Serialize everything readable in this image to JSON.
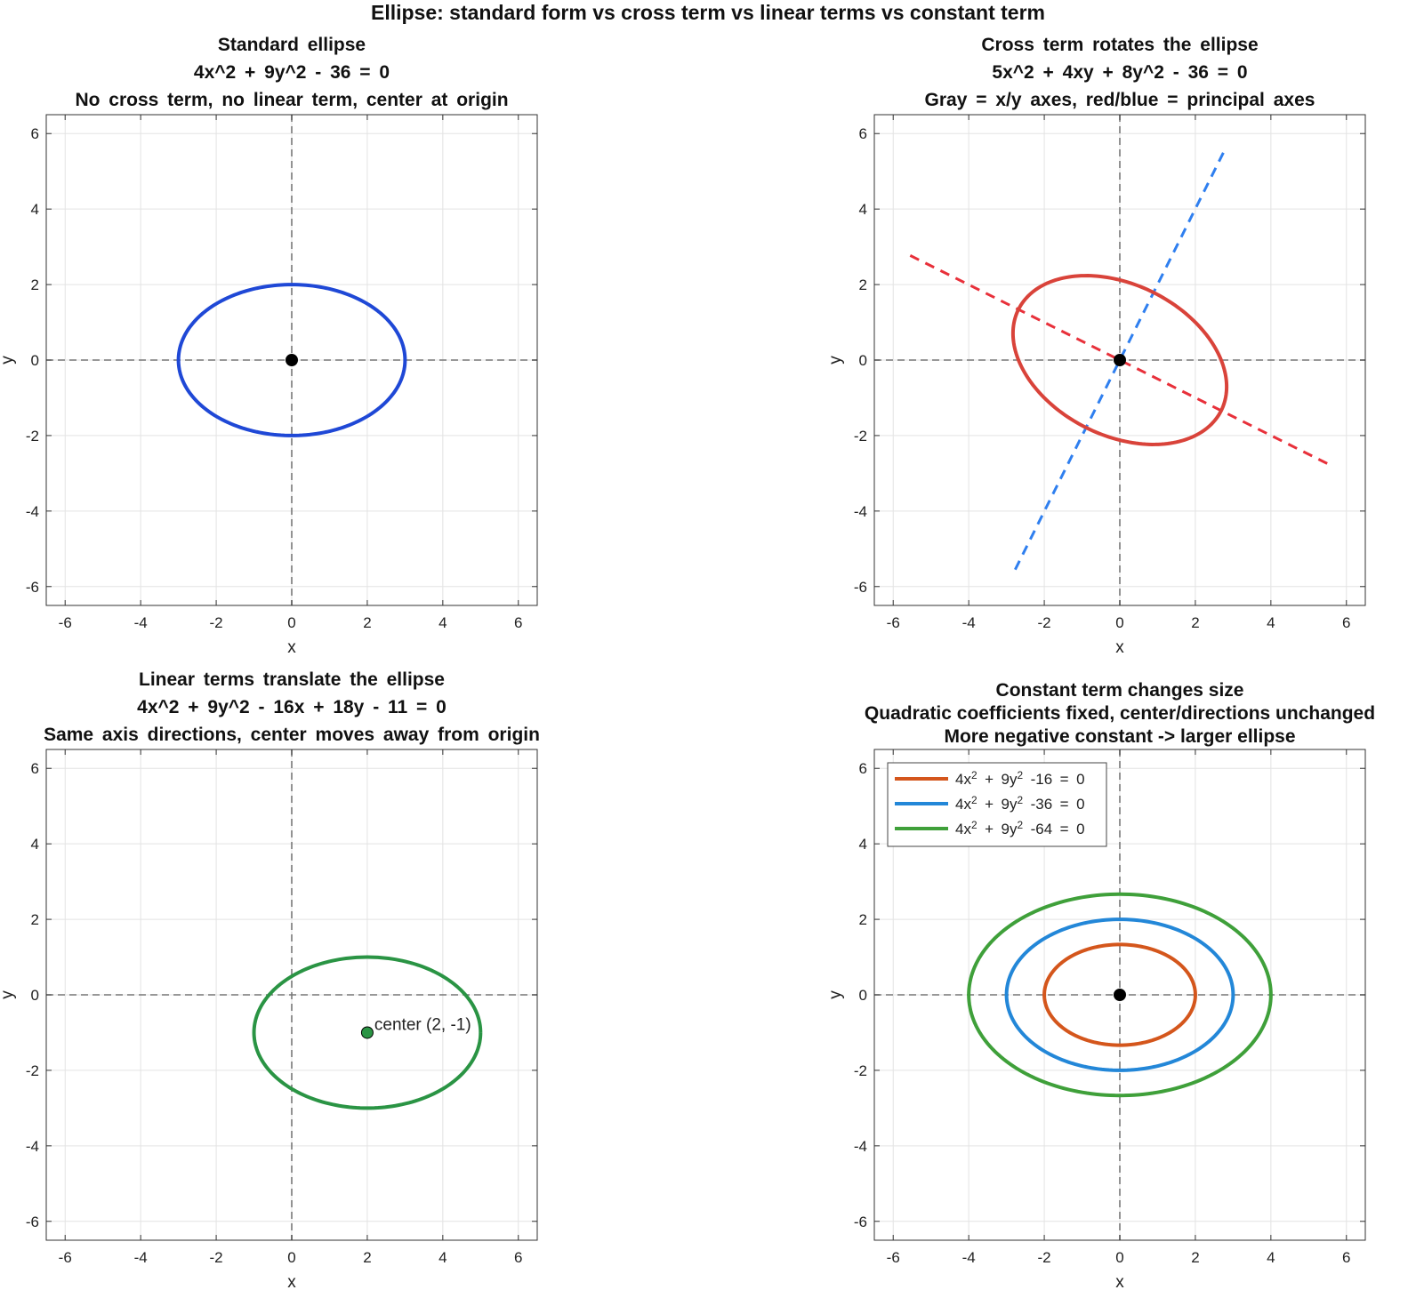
{
  "figure_title": "Ellipse: standard form vs cross term vs linear terms vs constant term",
  "chart_data": [
    {
      "type": "line",
      "title": [
        "Standard ellipse",
        "4x^2 + 9y^2 - 36 = 0",
        "No cross term, no linear term, center at origin"
      ],
      "xlabel": "x",
      "ylabel": "y",
      "xlim": [
        -6.5,
        6.5
      ],
      "ylim": [
        -6.5,
        6.5
      ],
      "xticks": [
        -6,
        -4,
        -2,
        0,
        2,
        4,
        6
      ],
      "yticks": [
        -6,
        -4,
        -2,
        0,
        2,
        4,
        6
      ],
      "grid": true,
      "ellipses": [
        {
          "A": 4,
          "B": 0,
          "C": 9,
          "D": 0,
          "E": 0,
          "F": -36,
          "center": [
            0,
            0
          ],
          "a": 3,
          "b": 2,
          "angle_deg": 0,
          "color": "#1f48d6"
        }
      ],
      "points": [
        {
          "x": 0,
          "y": 0,
          "color": "#000000"
        }
      ],
      "lines": []
    },
    {
      "type": "line",
      "title": [
        "Cross term rotates the ellipse",
        "5x^2 + 4xy + 8y^2 - 36 = 0",
        "Gray = x/y axes, red/blue = principal axes"
      ],
      "xlabel": "x",
      "ylabel": "y",
      "xlim": [
        -6.5,
        6.5
      ],
      "ylim": [
        -6.5,
        6.5
      ],
      "xticks": [
        -6,
        -4,
        -2,
        0,
        2,
        4,
        6
      ],
      "yticks": [
        -6,
        -4,
        -2,
        0,
        2,
        4,
        6
      ],
      "grid": true,
      "ellipses": [
        {
          "A": 5,
          "B": 4,
          "C": 8,
          "D": 0,
          "E": 0,
          "F": -36,
          "center": [
            0,
            0
          ],
          "a": 3,
          "b": 2,
          "angle_deg": -26.565,
          "color": "#d9433a"
        }
      ],
      "points": [
        {
          "x": 0,
          "y": 0,
          "color": "#000000"
        }
      ],
      "lines": [
        {
          "x": [
            -5.55,
            5.55
          ],
          "y": [
            2.77,
            -2.77
          ],
          "color": "#e8303a",
          "style": "dashed"
        },
        {
          "x": [
            -2.77,
            2.77
          ],
          "y": [
            -5.55,
            5.55
          ],
          "color": "#2f7fef",
          "style": "dashed"
        }
      ]
    },
    {
      "type": "line",
      "title": [
        "Linear terms translate the ellipse",
        "4x^2 + 9y^2 - 16x + 18y - 11 = 0",
        "Same axis directions, center moves away from origin"
      ],
      "xlabel": "x",
      "ylabel": "y",
      "xlim": [
        -6.5,
        6.5
      ],
      "ylim": [
        -6.5,
        6.5
      ],
      "xticks": [
        -6,
        -4,
        -2,
        0,
        2,
        4,
        6
      ],
      "yticks": [
        -6,
        -4,
        -2,
        0,
        2,
        4,
        6
      ],
      "grid": true,
      "ellipses": [
        {
          "A": 4,
          "B": 0,
          "C": 9,
          "D": -16,
          "E": 18,
          "F": -11,
          "center": [
            2,
            -1
          ],
          "a": 3,
          "b": 2,
          "angle_deg": 0,
          "color": "#2a9444"
        }
      ],
      "points": [
        {
          "x": 2,
          "y": -1,
          "color": "#2a9444",
          "label": "center (2, -1)"
        }
      ],
      "lines": []
    },
    {
      "type": "line",
      "title": [
        "Constant term changes size",
        "Quadratic coefficients fixed, center/directions unchanged",
        "More negative constant -> larger ellipse"
      ],
      "xlabel": "x",
      "ylabel": "y",
      "xlim": [
        -6.5,
        6.5
      ],
      "ylim": [
        -6.5,
        6.5
      ],
      "xticks": [
        -6,
        -4,
        -2,
        0,
        2,
        4,
        6
      ],
      "yticks": [
        -6,
        -4,
        -2,
        0,
        2,
        4,
        6
      ],
      "grid": true,
      "legend_position": "top-left",
      "ellipses": [
        {
          "name": "4x^2 + 9y^2 -16 = 0",
          "A": 4,
          "B": 0,
          "C": 9,
          "F": -16,
          "center": [
            0,
            0
          ],
          "a": 2,
          "b": 1.3333,
          "angle_deg": 0,
          "color": "#d4561c"
        },
        {
          "name": "4x^2 + 9y^2 -36 = 0",
          "A": 4,
          "B": 0,
          "C": 9,
          "F": -36,
          "center": [
            0,
            0
          ],
          "a": 3,
          "b": 2,
          "angle_deg": 0,
          "color": "#2387d8"
        },
        {
          "name": "4x^2 + 9y^2 -64 = 0",
          "A": 4,
          "B": 0,
          "C": 9,
          "F": -64,
          "center": [
            0,
            0
          ],
          "a": 4,
          "b": 2.6667,
          "angle_deg": 0,
          "color": "#3fa03a"
        }
      ],
      "points": [
        {
          "x": 0,
          "y": 0,
          "color": "#000000"
        }
      ],
      "lines": []
    }
  ]
}
